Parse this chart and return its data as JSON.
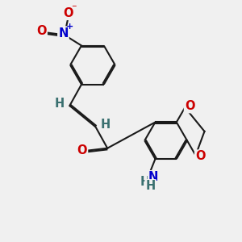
{
  "bg_color": "#f0f0f0",
  "bond_color": "#1a1a1a",
  "bond_width": 1.5,
  "dbo": 0.055,
  "atom_colors": {
    "O": "#cc0000",
    "N": "#0000cc",
    "H": "#3a7070",
    "C": "#1a1a1a"
  },
  "fs": 10.5,
  "fs2": 8.5
}
